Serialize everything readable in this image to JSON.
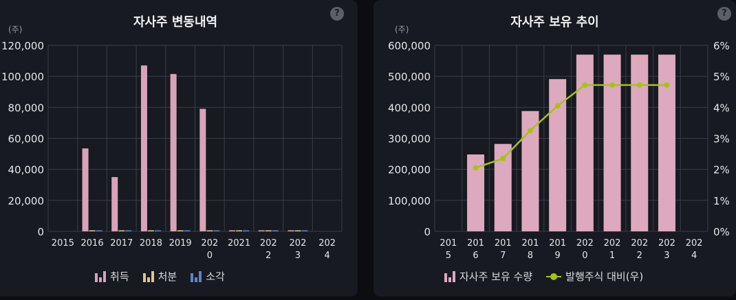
{
  "left_panel": {
    "title": "자사주 변동내역",
    "unit": "(주)",
    "help": "?"
  },
  "right_panel": {
    "title": "자사주 보유 추이",
    "unit": "(주)",
    "help": "?"
  },
  "colors": {
    "acquire": "#d8a3b8",
    "dispose": "#e2c38e",
    "retire": "#5f83c8",
    "holding_bar": "#dda9be",
    "ratio_line": "#a6c315",
    "grid": "#3a3e47",
    "tick_text": "#e6e6e8"
  },
  "chart_data": [
    {
      "type": "bar",
      "title": "자사주 변동내역",
      "ylabel": "(주)",
      "categories": [
        "2015",
        "2016",
        "2017",
        "2018",
        "2019",
        "2020",
        "2021",
        "2022",
        "2023",
        "2024"
      ],
      "category_labels": [
        [
          "2015"
        ],
        [
          "2016"
        ],
        [
          "2017"
        ],
        [
          "2018"
        ],
        [
          "2019"
        ],
        [
          "202",
          "0"
        ],
        [
          "2021"
        ],
        [
          "202",
          "2"
        ],
        [
          "202",
          "3"
        ],
        [
          "202",
          "4"
        ]
      ],
      "ylim": [
        0,
        120000
      ],
      "yticks": [
        0,
        20000,
        40000,
        60000,
        80000,
        100000,
        120000
      ],
      "ytick_labels": [
        "0",
        "20,000",
        "40,000",
        "60,000",
        "80,000",
        "100,000",
        "120,000"
      ],
      "series": [
        {
          "name": "취득",
          "values": [
            0,
            53500,
            35000,
            107000,
            101500,
            79000,
            0,
            0,
            0,
            0
          ]
        },
        {
          "name": "처분",
          "values": [
            0,
            0,
            0,
            0,
            0,
            0,
            0,
            0,
            0,
            0
          ]
        },
        {
          "name": "소각",
          "values": [
            0,
            0,
            0,
            0,
            0,
            0,
            0,
            0,
            0,
            0
          ]
        }
      ],
      "grid": true,
      "legend": "bottom"
    },
    {
      "type": "bar",
      "title": "자사주 보유 추이",
      "ylabel": "(주)",
      "categories": [
        "2015",
        "2016",
        "2017",
        "2018",
        "2019",
        "2020",
        "2021",
        "2022",
        "2023",
        "2024"
      ],
      "category_labels": [
        [
          "201",
          "5"
        ],
        [
          "201",
          "6"
        ],
        [
          "201",
          "7"
        ],
        [
          "201",
          "8"
        ],
        [
          "201",
          "9"
        ],
        [
          "202",
          "0"
        ],
        [
          "202",
          "1"
        ],
        [
          "202",
          "2"
        ],
        [
          "202",
          "3"
        ],
        [
          "202",
          "4"
        ]
      ],
      "ylim": [
        0,
        600000
      ],
      "yticks": [
        0,
        100000,
        200000,
        300000,
        400000,
        500000,
        600000
      ],
      "ytick_labels": [
        "0",
        "100,000",
        "200,000",
        "300,000",
        "400,000",
        "500,000",
        "600,000"
      ],
      "y2lim": [
        0,
        6
      ],
      "y2ticks": [
        0,
        1,
        2,
        3,
        4,
        5,
        6
      ],
      "y2tick_labels": [
        "0%",
        "1%",
        "2%",
        "3%",
        "4%",
        "5%",
        "6%"
      ],
      "series": [
        {
          "name": "자사주 보유 수량",
          "type": "bar",
          "values": [
            null,
            248000,
            282000,
            388000,
            491000,
            570000,
            570000,
            570000,
            570000,
            null
          ]
        },
        {
          "name": "발행주식 대비(우)",
          "type": "line",
          "axis": "right",
          "values": [
            null,
            2.05,
            2.35,
            3.25,
            4.05,
            4.72,
            4.72,
            4.72,
            4.72,
            null
          ]
        }
      ],
      "grid": true,
      "legend": "bottom"
    }
  ]
}
